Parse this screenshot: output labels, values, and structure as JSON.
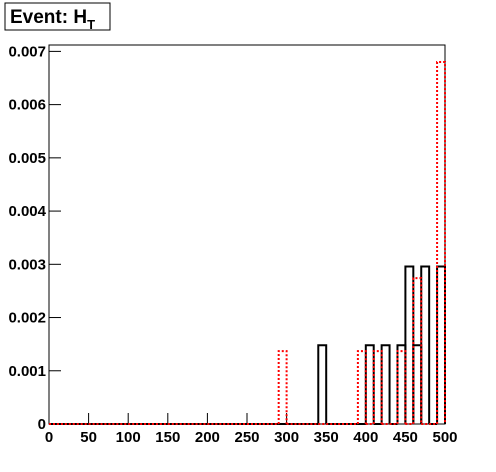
{
  "chart_data": {
    "type": "histogram",
    "title": "Event: H",
    "title_subscript": "T",
    "bins": [
      0,
      10,
      20,
      30,
      40,
      50,
      60,
      70,
      80,
      90,
      100,
      110,
      120,
      130,
      140,
      150,
      160,
      170,
      180,
      190,
      200,
      210,
      220,
      230,
      240,
      250,
      260,
      270,
      280,
      290,
      300,
      310,
      320,
      330,
      340,
      350,
      360,
      370,
      380,
      390,
      400,
      410,
      420,
      430,
      440,
      450,
      460,
      470,
      480,
      490,
      500
    ],
    "series": [
      {
        "color": "#000000",
        "style": "solid",
        "values": [
          0,
          0,
          0,
          0,
          0,
          0,
          0,
          0,
          0,
          0,
          0,
          0,
          0,
          0,
          0,
          0,
          0,
          0,
          0,
          0,
          0,
          0,
          0,
          0,
          0,
          0,
          0,
          0,
          0,
          0,
          0,
          0,
          0,
          0,
          0.00148,
          0,
          0,
          0,
          0,
          0,
          0.00148,
          0,
          0.00148,
          0,
          0.00148,
          0.00296,
          0.00148,
          0.00296,
          0,
          0.00296
        ]
      },
      {
        "color": "#ff0000",
        "style": "dotted",
        "values": [
          0,
          0,
          0,
          0,
          0,
          0,
          0,
          0,
          0,
          0,
          0,
          0,
          0,
          0,
          0,
          0,
          0,
          0,
          0,
          0,
          0,
          0,
          0,
          0,
          0,
          0,
          0,
          0,
          0,
          0.00137,
          0,
          0,
          0,
          0,
          0,
          0,
          0,
          0,
          0,
          0.00137,
          0,
          0.00137,
          0,
          0,
          0.00137,
          0,
          0.00274,
          0,
          0,
          0.0068
        ]
      }
    ],
    "xlim": [
      0,
      500
    ],
    "xticks": [
      0,
      50,
      100,
      150,
      200,
      250,
      300,
      350,
      400,
      450,
      500
    ],
    "ylim": [
      0,
      0.00712
    ],
    "yticks": [
      0,
      0.001,
      0.002,
      0.003,
      0.004,
      0.005,
      0.006,
      0.007
    ]
  }
}
